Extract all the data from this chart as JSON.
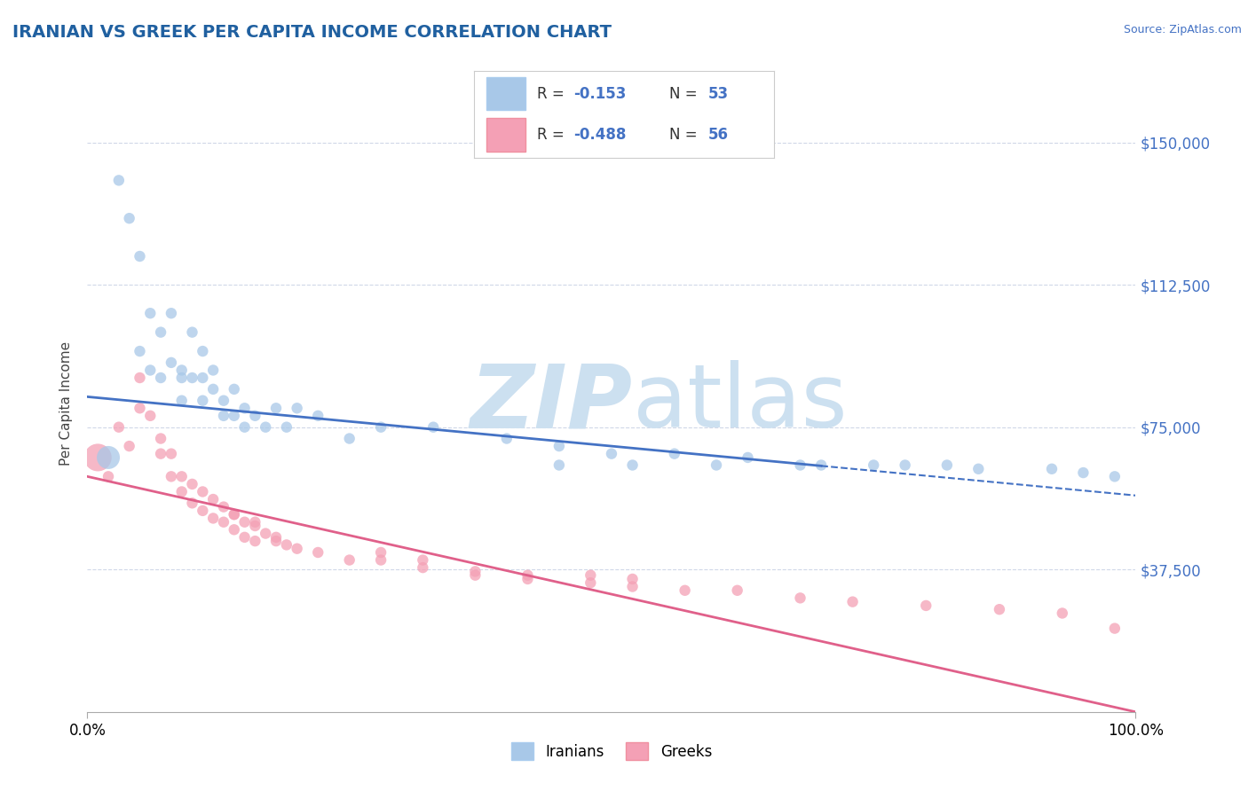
{
  "title": "IRANIAN VS GREEK PER CAPITA INCOME CORRELATION CHART",
  "source_text": "Source: ZipAtlas.com",
  "ylabel": "Per Capita Income",
  "xlim": [
    0.0,
    1.0
  ],
  "ylim": [
    0,
    162500
  ],
  "yticks": [
    37500,
    75000,
    112500,
    150000
  ],
  "ytick_labels": [
    "$37,500",
    "$75,000",
    "$112,500",
    "$150,000"
  ],
  "xtick_labels": [
    "0.0%",
    "100.0%"
  ],
  "legend_r_blue": "-0.153",
  "legend_n_blue": "53",
  "legend_r_pink": "-0.488",
  "legend_n_pink": "56",
  "legend_label_blue": "Iranians",
  "legend_label_pink": "Greeks",
  "blue_color": "#a8c8e8",
  "pink_color": "#f4a0b5",
  "blue_line_color": "#4472c4",
  "pink_line_color": "#e0608a",
  "blue_text_color": "#4472c4",
  "watermark_zip": "ZIP",
  "watermark_atlas": "atlas",
  "watermark_color": "#cce0f0",
  "grid_color": "#d0d8e8",
  "title_color": "#2060a0",
  "iranians_x": [
    0.02,
    0.03,
    0.04,
    0.05,
    0.05,
    0.06,
    0.06,
    0.07,
    0.07,
    0.08,
    0.08,
    0.09,
    0.09,
    0.09,
    0.1,
    0.1,
    0.11,
    0.11,
    0.11,
    0.12,
    0.12,
    0.13,
    0.13,
    0.14,
    0.14,
    0.15,
    0.15,
    0.16,
    0.17,
    0.18,
    0.19,
    0.2,
    0.22,
    0.25,
    0.28,
    0.33,
    0.4,
    0.45,
    0.5,
    0.56,
    0.63,
    0.7,
    0.78,
    0.85,
    0.92,
    0.95,
    0.98,
    0.82,
    0.75,
    0.68,
    0.6,
    0.52,
    0.45
  ],
  "iranians_y": [
    67000,
    140000,
    130000,
    120000,
    95000,
    105000,
    90000,
    100000,
    88000,
    105000,
    92000,
    90000,
    88000,
    82000,
    100000,
    88000,
    95000,
    88000,
    82000,
    90000,
    85000,
    82000,
    78000,
    85000,
    78000,
    80000,
    75000,
    78000,
    75000,
    80000,
    75000,
    80000,
    78000,
    72000,
    75000,
    75000,
    72000,
    70000,
    68000,
    68000,
    67000,
    65000,
    65000,
    64000,
    64000,
    63000,
    62000,
    65000,
    65000,
    65000,
    65000,
    65000,
    65000
  ],
  "iranians_size": [
    350,
    80,
    80,
    80,
    80,
    80,
    80,
    80,
    80,
    80,
    80,
    80,
    80,
    80,
    80,
    80,
    80,
    80,
    80,
    80,
    80,
    80,
    80,
    80,
    80,
    80,
    80,
    80,
    80,
    80,
    80,
    80,
    80,
    80,
    80,
    80,
    80,
    80,
    80,
    80,
    80,
    80,
    80,
    80,
    80,
    80,
    80,
    80,
    80,
    80,
    80,
    80,
    80
  ],
  "greeks_x": [
    0.01,
    0.02,
    0.03,
    0.04,
    0.05,
    0.05,
    0.06,
    0.07,
    0.07,
    0.08,
    0.08,
    0.09,
    0.09,
    0.1,
    0.1,
    0.11,
    0.11,
    0.12,
    0.12,
    0.13,
    0.13,
    0.14,
    0.14,
    0.15,
    0.15,
    0.16,
    0.16,
    0.17,
    0.18,
    0.19,
    0.2,
    0.22,
    0.25,
    0.28,
    0.32,
    0.37,
    0.42,
    0.48,
    0.52,
    0.57,
    0.62,
    0.68,
    0.73,
    0.8,
    0.87,
    0.93,
    0.52,
    0.48,
    0.28,
    0.32,
    0.37,
    0.42,
    0.14,
    0.16,
    0.18,
    0.98
  ],
  "greeks_y": [
    67000,
    62000,
    75000,
    70000,
    88000,
    80000,
    78000,
    72000,
    68000,
    68000,
    62000,
    62000,
    58000,
    60000,
    55000,
    58000,
    53000,
    56000,
    51000,
    54000,
    50000,
    52000,
    48000,
    50000,
    46000,
    49000,
    45000,
    47000,
    45000,
    44000,
    43000,
    42000,
    40000,
    40000,
    38000,
    36000,
    35000,
    34000,
    33000,
    32000,
    32000,
    30000,
    29000,
    28000,
    27000,
    26000,
    35000,
    36000,
    42000,
    40000,
    37000,
    36000,
    52000,
    50000,
    46000,
    22000
  ],
  "greeks_size": [
    500,
    80,
    80,
    80,
    80,
    80,
    80,
    80,
    80,
    80,
    80,
    80,
    80,
    80,
    80,
    80,
    80,
    80,
    80,
    80,
    80,
    80,
    80,
    80,
    80,
    80,
    80,
    80,
    80,
    80,
    80,
    80,
    80,
    80,
    80,
    80,
    80,
    80,
    80,
    80,
    80,
    80,
    80,
    80,
    80,
    80,
    80,
    80,
    80,
    80,
    80,
    80,
    80,
    80,
    80,
    80
  ]
}
